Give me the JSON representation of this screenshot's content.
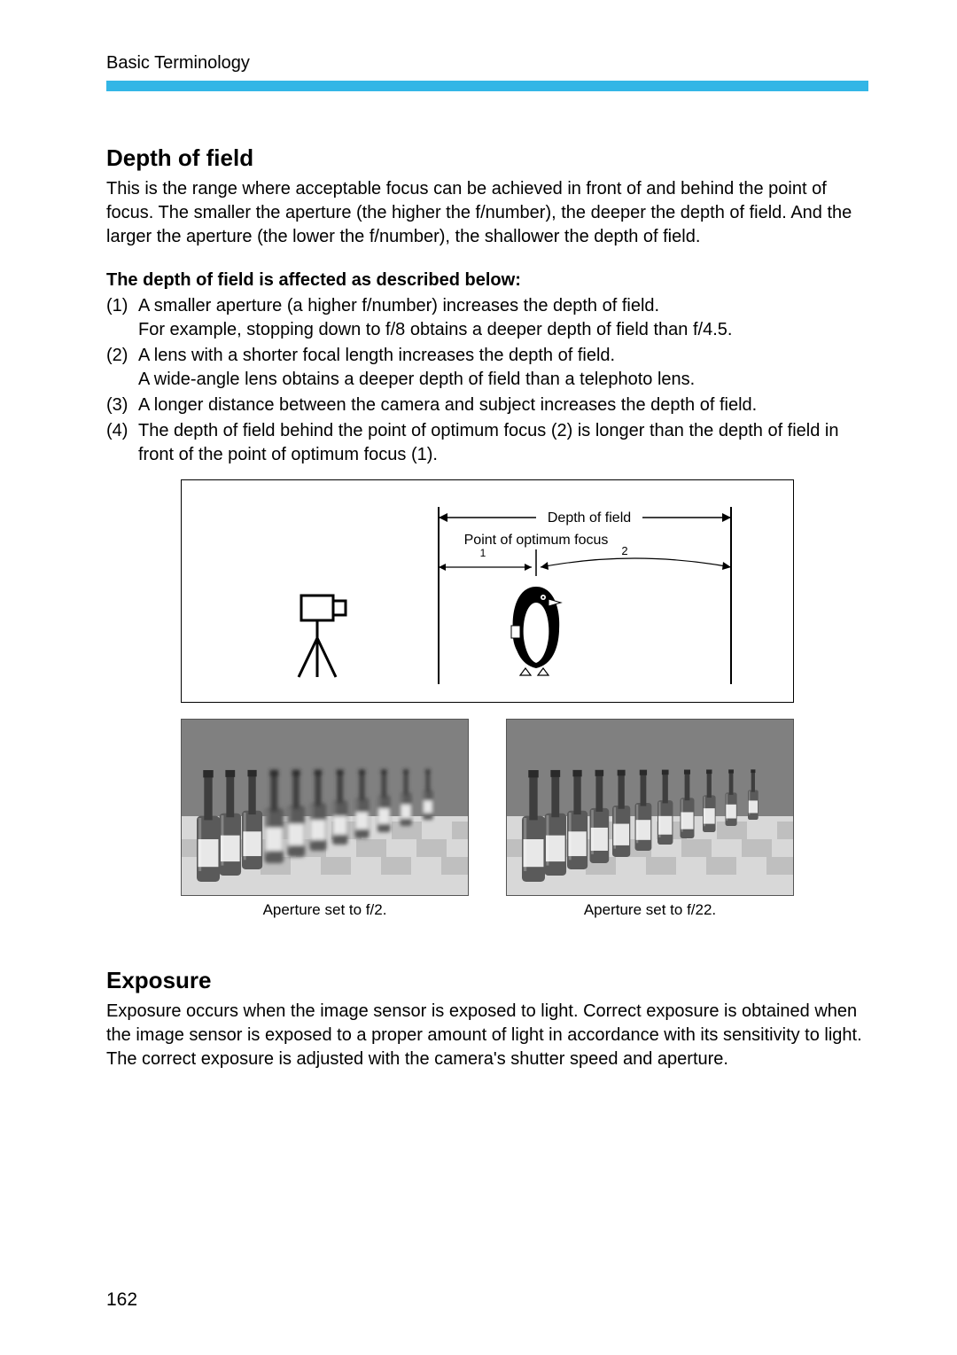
{
  "header": {
    "title": "Basic Terminology"
  },
  "accent_color": "#33b6e6",
  "depth_of_field": {
    "heading": "Depth of field",
    "intro": "This is the range where acceptable focus can be achieved in front of and behind the point of focus. The smaller the aperture (the higher the f/number), the deeper the depth of field. And the larger the aperture (the lower the f/number), the shallower the depth of field.",
    "sub_heading": "The depth of field is affected as described below:",
    "items": [
      {
        "num": "(1)",
        "text": "A smaller aperture (a higher f/number) increases the depth of field.\nFor example, stopping down to f/8 obtains a deeper depth of field than f/4.5."
      },
      {
        "num": "(2)",
        "text": "A lens with a shorter focal length increases the depth of field.\nA wide-angle lens obtains a deeper depth of field than a telephoto lens."
      },
      {
        "num": "(3)",
        "text": "A longer distance between the camera and subject increases the depth of field."
      },
      {
        "num": "(4)",
        "text": "The depth of field behind the point of optimum focus (2) is longer than the depth of field in front of the point of optimum focus (1)."
      }
    ]
  },
  "diagram": {
    "label_dof": "Depth of field",
    "label_focus": "Point of optimum focus",
    "label_one": "1",
    "label_two": "2"
  },
  "photos": {
    "left_caption": "Aperture set to f/2.",
    "right_caption": "Aperture set to f/22.",
    "bottle_count": 11,
    "bg_top": "#808080",
    "bg_bottom": "#d8d8d8",
    "bottle_body": "#5a5a5a",
    "bottle_neck": "#3e3e3e",
    "bottle_label": "#e8e8e8"
  },
  "exposure": {
    "heading": "Exposure",
    "text": "Exposure occurs when the image sensor is exposed to light. Correct exposure is obtained when the image sensor is exposed to a proper amount of light in accordance with its sensitivity to light. The correct exposure is adjusted with the camera's shutter speed and aperture."
  },
  "page_number": "162"
}
